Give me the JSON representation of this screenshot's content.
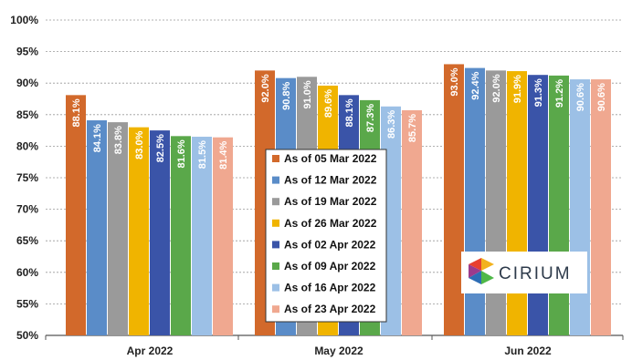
{
  "chart_data": {
    "type": "bar",
    "categories": [
      "Apr 2022",
      "May 2022",
      "Jun 2022"
    ],
    "series": [
      {
        "name": "As of 05 Mar 2022",
        "color": "#d2692b",
        "values": [
          88.1,
          92.0,
          93.0
        ]
      },
      {
        "name": "As of 12 Mar 2022",
        "color": "#5a8cc8",
        "values": [
          84.1,
          90.8,
          92.4
        ]
      },
      {
        "name": "As of 19 Mar 2022",
        "color": "#9a9a9a",
        "values": [
          83.8,
          91.0,
          92.0
        ]
      },
      {
        "name": "As of 26 Mar 2022",
        "color": "#f0b400",
        "values": [
          83.0,
          89.6,
          91.9
        ]
      },
      {
        "name": "As of 02 Apr 2022",
        "color": "#3a54a8",
        "values": [
          82.5,
          88.1,
          91.3
        ]
      },
      {
        "name": "As of 09 Apr 2022",
        "color": "#5aa84a",
        "values": [
          81.6,
          87.3,
          91.2
        ]
      },
      {
        "name": "As of 16 Apr 2022",
        "color": "#9cc0e6",
        "values": [
          81.5,
          86.3,
          90.6
        ]
      },
      {
        "name": "As of 23 Apr 2022",
        "color": "#f0a890",
        "values": [
          81.4,
          85.7,
          90.6
        ]
      }
    ],
    "data_labels": [
      [
        "88.1%",
        "92.0%",
        "93.0%"
      ],
      [
        "84.1%",
        "90.8%",
        "92.4%"
      ],
      [
        "83.8%",
        "91.0%",
        "92.0%"
      ],
      [
        "83.0%",
        "89.6%",
        "91.9%"
      ],
      [
        "82.5%",
        "88.1%",
        "91.3%"
      ],
      [
        "81.6%",
        "87.3%",
        "91.2%"
      ],
      [
        "81.5%",
        "86.3%",
        "90.6%"
      ],
      [
        "81.4%",
        "85.7%",
        "90.6%"
      ]
    ],
    "y_ticks": [
      50,
      55,
      60,
      65,
      70,
      75,
      80,
      85,
      90,
      95,
      100
    ],
    "y_tick_labels": [
      "50%",
      "55%",
      "60%",
      "65%",
      "70%",
      "75%",
      "80%",
      "85%",
      "90%",
      "95%",
      "100%"
    ],
    "ylim": [
      50,
      100
    ],
    "grid": true,
    "legend_position": "center"
  },
  "logo": {
    "text": "CIRIUM"
  }
}
